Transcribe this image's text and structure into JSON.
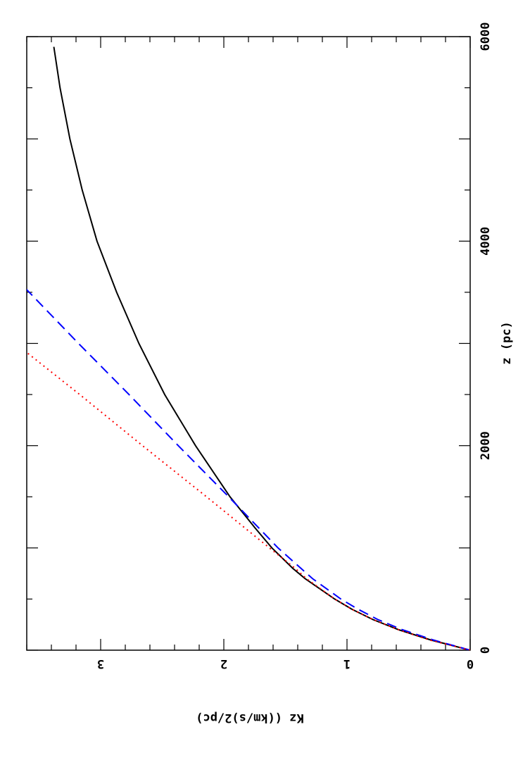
{
  "chart_data": {
    "type": "line",
    "orientation": "rotated-90-clockwise",
    "xlabel": "z (pc)",
    "ylabel": "Kz ((km/s)2/pc)",
    "xlim": [
      0,
      6000
    ],
    "ylim": [
      0,
      3.6
    ],
    "x_ticks": [
      "0",
      "2000",
      "4000",
      "6000"
    ],
    "y_ticks": [
      "0",
      "1",
      "2",
      "3"
    ],
    "grid": false,
    "series": [
      {
        "style": "solid",
        "color": "#000000",
        "x": [
          0,
          100,
          200,
          300,
          400,
          500,
          600,
          700,
          800,
          1000,
          1200,
          1500,
          2000,
          2500,
          3000,
          3500,
          4000,
          4500,
          5000,
          5500,
          5900
        ],
        "y": [
          0,
          0.32,
          0.58,
          0.79,
          0.96,
          1.1,
          1.22,
          1.34,
          1.44,
          1.61,
          1.75,
          1.95,
          2.23,
          2.48,
          2.69,
          2.87,
          3.03,
          3.15,
          3.25,
          3.33,
          3.38
        ]
      },
      {
        "style": "dashed",
        "color": "#0000ff",
        "x": [
          0,
          100,
          200,
          300,
          400,
          500,
          700,
          1000,
          1500,
          2000,
          2500,
          3000,
          3500,
          3900
        ],
        "y": [
          0,
          0.3,
          0.55,
          0.75,
          0.91,
          1.05,
          1.28,
          1.56,
          1.96,
          2.37,
          2.77,
          3.18,
          3.58,
          3.9
        ]
      },
      {
        "style": "dotted",
        "color": "#ff0000",
        "x": [
          0,
          100,
          200,
          300,
          400,
          500,
          700,
          800,
          1000,
          1500,
          2000,
          2500,
          2950
        ],
        "y": [
          0,
          0.33,
          0.58,
          0.79,
          0.96,
          1.1,
          1.33,
          1.42,
          1.63,
          2.14,
          2.66,
          3.17,
          3.64
        ]
      }
    ]
  }
}
